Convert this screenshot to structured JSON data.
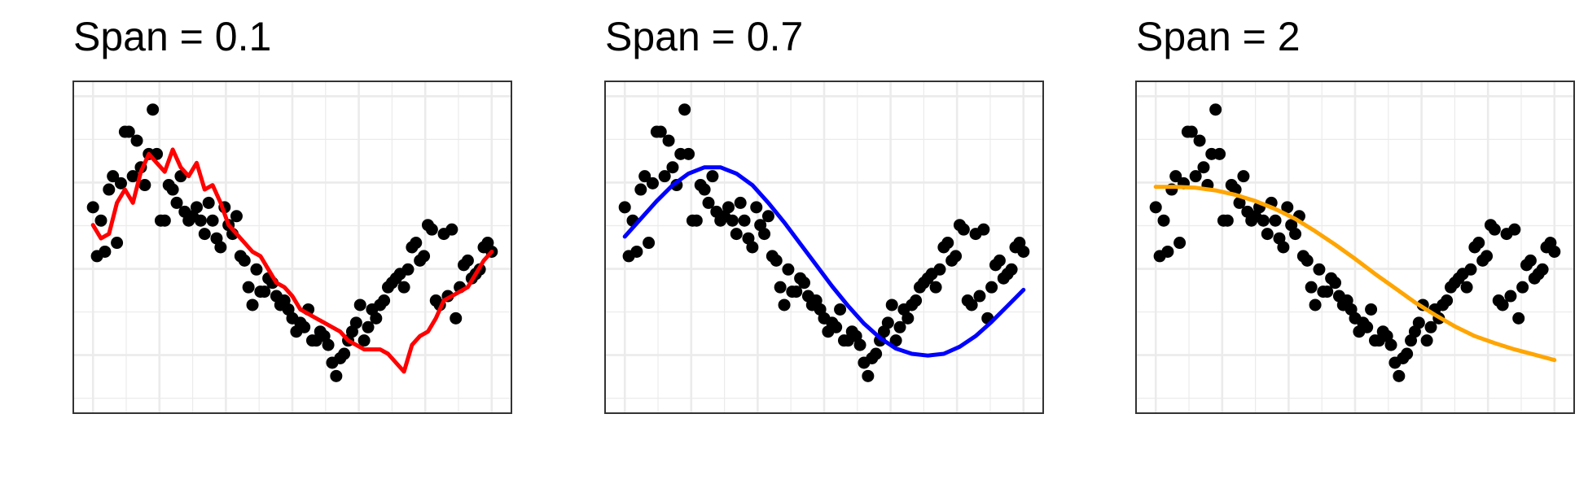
{
  "chart_data": [
    {
      "type": "scatter",
      "title": "Span = 0.1",
      "xlim": [
        0,
        1
      ],
      "ylim": [
        -1.6,
        1.8
      ],
      "grid": true,
      "smooth_color": "#ff0000",
      "points_x": [
        0.0,
        0.01,
        0.02,
        0.03,
        0.04,
        0.05,
        0.06,
        0.07,
        0.08,
        0.09,
        0.1,
        0.11,
        0.12,
        0.13,
        0.14,
        0.15,
        0.16,
        0.17,
        0.18,
        0.19,
        0.2,
        0.21,
        0.22,
        0.23,
        0.24,
        0.25,
        0.26,
        0.27,
        0.28,
        0.29,
        0.3,
        0.31,
        0.32,
        0.33,
        0.34,
        0.35,
        0.36,
        0.37,
        0.38,
        0.39,
        0.4,
        0.41,
        0.42,
        0.43,
        0.44,
        0.45,
        0.46,
        0.47,
        0.48,
        0.49,
        0.5,
        0.51,
        0.52,
        0.53,
        0.54,
        0.55,
        0.56,
        0.57,
        0.58,
        0.59,
        0.6,
        0.61,
        0.62,
        0.63,
        0.64,
        0.65,
        0.66,
        0.67,
        0.68,
        0.69,
        0.7,
        0.71,
        0.72,
        0.73,
        0.74,
        0.75,
        0.76,
        0.77,
        0.78,
        0.79,
        0.8,
        0.81,
        0.82,
        0.83,
        0.84,
        0.85,
        0.86,
        0.87,
        0.88,
        0.89,
        0.9,
        0.91,
        0.92,
        0.93,
        0.94,
        0.95,
        0.96,
        0.97,
        0.98,
        0.99,
        1.0
      ],
      "points_y": [
        0.55,
        0.0,
        0.4,
        0.05,
        0.75,
        0.9,
        0.15,
        0.82,
        1.4,
        1.4,
        0.9,
        1.3,
        1.0,
        0.8,
        1.15,
        1.65,
        1.15,
        0.4,
        0.4,
        0.8,
        0.75,
        0.6,
        0.9,
        0.5,
        0.4,
        0.45,
        0.55,
        0.4,
        0.25,
        0.6,
        0.4,
        0.2,
        0.1,
        0.55,
        0.35,
        0.25,
        0.45,
        0.0,
        -0.05,
        -0.35,
        -0.55,
        -0.15,
        -0.4,
        -0.4,
        -0.25,
        -0.3,
        -0.45,
        -0.55,
        -0.5,
        -0.6,
        -0.7,
        -0.85,
        -0.75,
        -0.8,
        -0.6,
        -0.95,
        -0.95,
        -0.85,
        -0.9,
        -1.0,
        -1.2,
        -1.35,
        -1.15,
        -1.1,
        -0.95,
        -0.85,
        -0.75,
        -0.55,
        -0.95,
        -0.8,
        -0.6,
        -0.7,
        -0.55,
        -0.5,
        -0.35,
        -0.3,
        -0.25,
        -0.2,
        -0.35,
        -0.15,
        0.1,
        0.15,
        -0.05,
        0.0,
        0.35,
        0.3,
        -0.5,
        -0.55,
        0.25,
        -0.45,
        0.3,
        -0.7,
        -0.35,
        -0.1,
        -0.05,
        -0.25,
        -0.2,
        -0.15,
        0.1,
        0.15,
        0.05
      ],
      "smooth_x": [
        0.0,
        0.02,
        0.04,
        0.06,
        0.08,
        0.1,
        0.12,
        0.14,
        0.16,
        0.18,
        0.2,
        0.22,
        0.24,
        0.26,
        0.28,
        0.3,
        0.32,
        0.34,
        0.36,
        0.38,
        0.4,
        0.42,
        0.44,
        0.46,
        0.48,
        0.5,
        0.52,
        0.54,
        0.56,
        0.58,
        0.6,
        0.62,
        0.64,
        0.66,
        0.68,
        0.7,
        0.72,
        0.74,
        0.76,
        0.78,
        0.8,
        0.82,
        0.84,
        0.86,
        0.88,
        0.9,
        0.92,
        0.94,
        0.96,
        0.98,
        1.0
      ],
      "smooth_y": [
        0.35,
        0.2,
        0.25,
        0.6,
        0.75,
        0.6,
        0.95,
        1.15,
        1.05,
        0.95,
        1.2,
        1.0,
        0.9,
        1.05,
        0.75,
        0.8,
        0.6,
        0.35,
        0.25,
        0.15,
        0.05,
        0.0,
        -0.15,
        -0.3,
        -0.35,
        -0.45,
        -0.6,
        -0.65,
        -0.7,
        -0.75,
        -0.8,
        -0.85,
        -0.95,
        -1.0,
        -1.05,
        -1.05,
        -1.05,
        -1.1,
        -1.2,
        -1.3,
        -1.0,
        -0.9,
        -0.85,
        -0.7,
        -0.5,
        -0.45,
        -0.4,
        -0.35,
        -0.2,
        -0.05,
        0.05
      ]
    },
    {
      "type": "scatter",
      "title": "Span = 0.7",
      "xlim": [
        0,
        1
      ],
      "ylim": [
        -1.6,
        1.8
      ],
      "grid": true,
      "smooth_color": "#0000ff",
      "points_x": [
        0.0,
        0.01,
        0.02,
        0.03,
        0.04,
        0.05,
        0.06,
        0.07,
        0.08,
        0.09,
        0.1,
        0.11,
        0.12,
        0.13,
        0.14,
        0.15,
        0.16,
        0.17,
        0.18,
        0.19,
        0.2,
        0.21,
        0.22,
        0.23,
        0.24,
        0.25,
        0.26,
        0.27,
        0.28,
        0.29,
        0.3,
        0.31,
        0.32,
        0.33,
        0.34,
        0.35,
        0.36,
        0.37,
        0.38,
        0.39,
        0.4,
        0.41,
        0.42,
        0.43,
        0.44,
        0.45,
        0.46,
        0.47,
        0.48,
        0.49,
        0.5,
        0.51,
        0.52,
        0.53,
        0.54,
        0.55,
        0.56,
        0.57,
        0.58,
        0.59,
        0.6,
        0.61,
        0.62,
        0.63,
        0.64,
        0.65,
        0.66,
        0.67,
        0.68,
        0.69,
        0.7,
        0.71,
        0.72,
        0.73,
        0.74,
        0.75,
        0.76,
        0.77,
        0.78,
        0.79,
        0.8,
        0.81,
        0.82,
        0.83,
        0.84,
        0.85,
        0.86,
        0.87,
        0.88,
        0.89,
        0.9,
        0.91,
        0.92,
        0.93,
        0.94,
        0.95,
        0.96,
        0.97,
        0.98,
        0.99,
        1.0
      ],
      "points_y": [
        0.55,
        0.0,
        0.4,
        0.05,
        0.75,
        0.9,
        0.15,
        0.82,
        1.4,
        1.4,
        0.9,
        1.3,
        1.0,
        0.8,
        1.15,
        1.65,
        1.15,
        0.4,
        0.4,
        0.8,
        0.75,
        0.6,
        0.9,
        0.5,
        0.4,
        0.45,
        0.55,
        0.4,
        0.25,
        0.6,
        0.4,
        0.2,
        0.1,
        0.55,
        0.35,
        0.25,
        0.45,
        0.0,
        -0.05,
        -0.35,
        -0.55,
        -0.15,
        -0.4,
        -0.4,
        -0.25,
        -0.3,
        -0.45,
        -0.55,
        -0.5,
        -0.6,
        -0.7,
        -0.85,
        -0.75,
        -0.8,
        -0.6,
        -0.95,
        -0.95,
        -0.85,
        -0.9,
        -1.0,
        -1.2,
        -1.35,
        -1.15,
        -1.1,
        -0.95,
        -0.85,
        -0.75,
        -0.55,
        -0.95,
        -0.8,
        -0.6,
        -0.7,
        -0.55,
        -0.5,
        -0.35,
        -0.3,
        -0.25,
        -0.2,
        -0.35,
        -0.15,
        0.1,
        0.15,
        -0.05,
        0.0,
        0.35,
        0.3,
        -0.5,
        -0.55,
        0.25,
        -0.45,
        0.3,
        -0.7,
        -0.35,
        -0.1,
        -0.05,
        -0.25,
        -0.2,
        -0.15,
        0.1,
        0.15,
        0.05
      ],
      "smooth_x": [
        0.0,
        0.04,
        0.08,
        0.12,
        0.16,
        0.2,
        0.24,
        0.28,
        0.32,
        0.36,
        0.4,
        0.44,
        0.48,
        0.52,
        0.56,
        0.6,
        0.64,
        0.68,
        0.72,
        0.76,
        0.8,
        0.84,
        0.88,
        0.92,
        0.96,
        1.0
      ],
      "smooth_y": [
        0.22,
        0.42,
        0.62,
        0.8,
        0.93,
        1.0,
        1.0,
        0.93,
        0.8,
        0.6,
        0.38,
        0.14,
        -0.1,
        -0.34,
        -0.56,
        -0.76,
        -0.92,
        -1.04,
        -1.1,
        -1.12,
        -1.1,
        -1.02,
        -0.9,
        -0.74,
        -0.56,
        -0.38
      ]
    },
    {
      "type": "scatter",
      "title": "Span = 2",
      "xlim": [
        0,
        1
      ],
      "ylim": [
        -1.6,
        1.8
      ],
      "grid": true,
      "smooth_color": "#ffa500",
      "points_x": [
        0.0,
        0.01,
        0.02,
        0.03,
        0.04,
        0.05,
        0.06,
        0.07,
        0.08,
        0.09,
        0.1,
        0.11,
        0.12,
        0.13,
        0.14,
        0.15,
        0.16,
        0.17,
        0.18,
        0.19,
        0.2,
        0.21,
        0.22,
        0.23,
        0.24,
        0.25,
        0.26,
        0.27,
        0.28,
        0.29,
        0.3,
        0.31,
        0.32,
        0.33,
        0.34,
        0.35,
        0.36,
        0.37,
        0.38,
        0.39,
        0.4,
        0.41,
        0.42,
        0.43,
        0.44,
        0.45,
        0.46,
        0.47,
        0.48,
        0.49,
        0.5,
        0.51,
        0.52,
        0.53,
        0.54,
        0.55,
        0.56,
        0.57,
        0.58,
        0.59,
        0.6,
        0.61,
        0.62,
        0.63,
        0.64,
        0.65,
        0.66,
        0.67,
        0.68,
        0.69,
        0.7,
        0.71,
        0.72,
        0.73,
        0.74,
        0.75,
        0.76,
        0.77,
        0.78,
        0.79,
        0.8,
        0.81,
        0.82,
        0.83,
        0.84,
        0.85,
        0.86,
        0.87,
        0.88,
        0.89,
        0.9,
        0.91,
        0.92,
        0.93,
        0.94,
        0.95,
        0.96,
        0.97,
        0.98,
        0.99,
        1.0
      ],
      "points_y": [
        0.55,
        0.0,
        0.4,
        0.05,
        0.75,
        0.9,
        0.15,
        0.82,
        1.4,
        1.4,
        0.9,
        1.3,
        1.0,
        0.8,
        1.15,
        1.65,
        1.15,
        0.4,
        0.4,
        0.8,
        0.75,
        0.6,
        0.9,
        0.5,
        0.4,
        0.45,
        0.55,
        0.4,
        0.25,
        0.6,
        0.4,
        0.2,
        0.1,
        0.55,
        0.35,
        0.25,
        0.45,
        0.0,
        -0.05,
        -0.35,
        -0.55,
        -0.15,
        -0.4,
        -0.4,
        -0.25,
        -0.3,
        -0.45,
        -0.55,
        -0.5,
        -0.6,
        -0.7,
        -0.85,
        -0.75,
        -0.8,
        -0.6,
        -0.95,
        -0.95,
        -0.85,
        -0.9,
        -1.0,
        -1.2,
        -1.35,
        -1.15,
        -1.1,
        -0.95,
        -0.85,
        -0.75,
        -0.55,
        -0.95,
        -0.8,
        -0.6,
        -0.7,
        -0.55,
        -0.5,
        -0.35,
        -0.3,
        -0.25,
        -0.2,
        -0.35,
        -0.15,
        0.1,
        0.15,
        -0.05,
        0.0,
        0.35,
        0.3,
        -0.5,
        -0.55,
        0.25,
        -0.45,
        0.3,
        -0.7,
        -0.35,
        -0.1,
        -0.05,
        -0.25,
        -0.2,
        -0.15,
        0.1,
        0.15,
        0.05
      ],
      "smooth_x": [
        0.0,
        0.05,
        0.1,
        0.15,
        0.2,
        0.25,
        0.3,
        0.35,
        0.4,
        0.45,
        0.5,
        0.55,
        0.6,
        0.65,
        0.7,
        0.75,
        0.8,
        0.85,
        0.9,
        0.95,
        1.0
      ],
      "smooth_y": [
        0.78,
        0.78,
        0.77,
        0.74,
        0.69,
        0.62,
        0.53,
        0.42,
        0.28,
        0.13,
        -0.03,
        -0.2,
        -0.36,
        -0.52,
        -0.66,
        -0.79,
        -0.9,
        -0.98,
        -1.05,
        -1.11,
        -1.17
      ]
    }
  ]
}
